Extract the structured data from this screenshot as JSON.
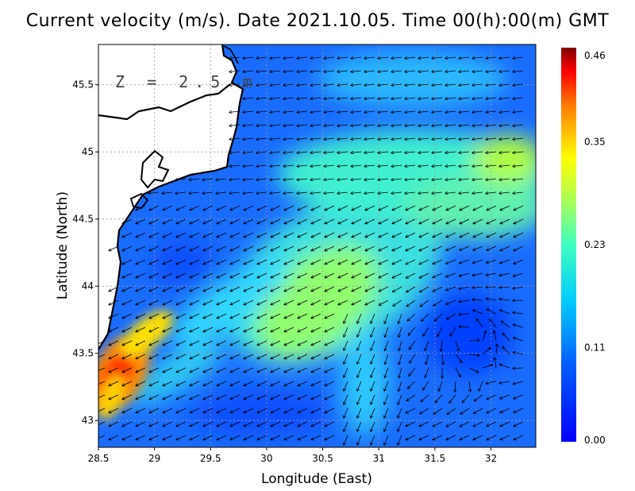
{
  "title": "Current velocity (m/s). Date 2021.10.05. Time 00(h):00(m) GMT",
  "depth_label": "Z = 2.5 m",
  "x_axis": {
    "label": "Longitude (East)",
    "range": [
      28.5,
      32.4
    ],
    "ticks": [
      "28.5",
      "29",
      "29.5",
      "30",
      "30.5",
      "31",
      "31.5",
      "32"
    ],
    "tick_values": [
      28.5,
      29,
      29.5,
      30,
      30.5,
      31,
      31.5,
      32
    ]
  },
  "y_axis": {
    "label": "Latitude (North)",
    "range": [
      42.8,
      45.8
    ],
    "ticks": [
      "43",
      "43.5",
      "44",
      "44.5",
      "45",
      "45.5"
    ],
    "tick_values": [
      43,
      43.5,
      44,
      44.5,
      45,
      45.5
    ]
  },
  "colorbar": {
    "ticks": [
      "0.46",
      "0.35",
      "0.23",
      "0.11",
      "0.00"
    ],
    "tick_values": [
      0.46,
      0.35,
      0.23,
      0.11,
      0.0
    ],
    "min": 0.0,
    "max": 0.46,
    "colormap": "jet"
  },
  "chart_data": {
    "type": "heatmap",
    "title": "Current velocity (m/s). Date 2021.10.05. Time 00(h):00(m) GMT",
    "xlabel": "Longitude (East)",
    "ylabel": "Latitude (North)",
    "xlim": [
      28.5,
      32.4
    ],
    "ylim": [
      42.8,
      45.8
    ],
    "value_range": [
      0.0,
      0.46
    ],
    "grid": true,
    "features": [
      {
        "lon": 28.65,
        "lat": 43.3,
        "speed": 0.44
      },
      {
        "lon": 30.5,
        "lat": 44.0,
        "speed": 0.26
      },
      {
        "lon": 32.2,
        "lat": 44.9,
        "speed": 0.32
      },
      {
        "lon": 31.7,
        "lat": 43.7,
        "speed": 0.03
      },
      {
        "lon": 29.3,
        "lat": 44.3,
        "speed": 0.06
      }
    ]
  }
}
